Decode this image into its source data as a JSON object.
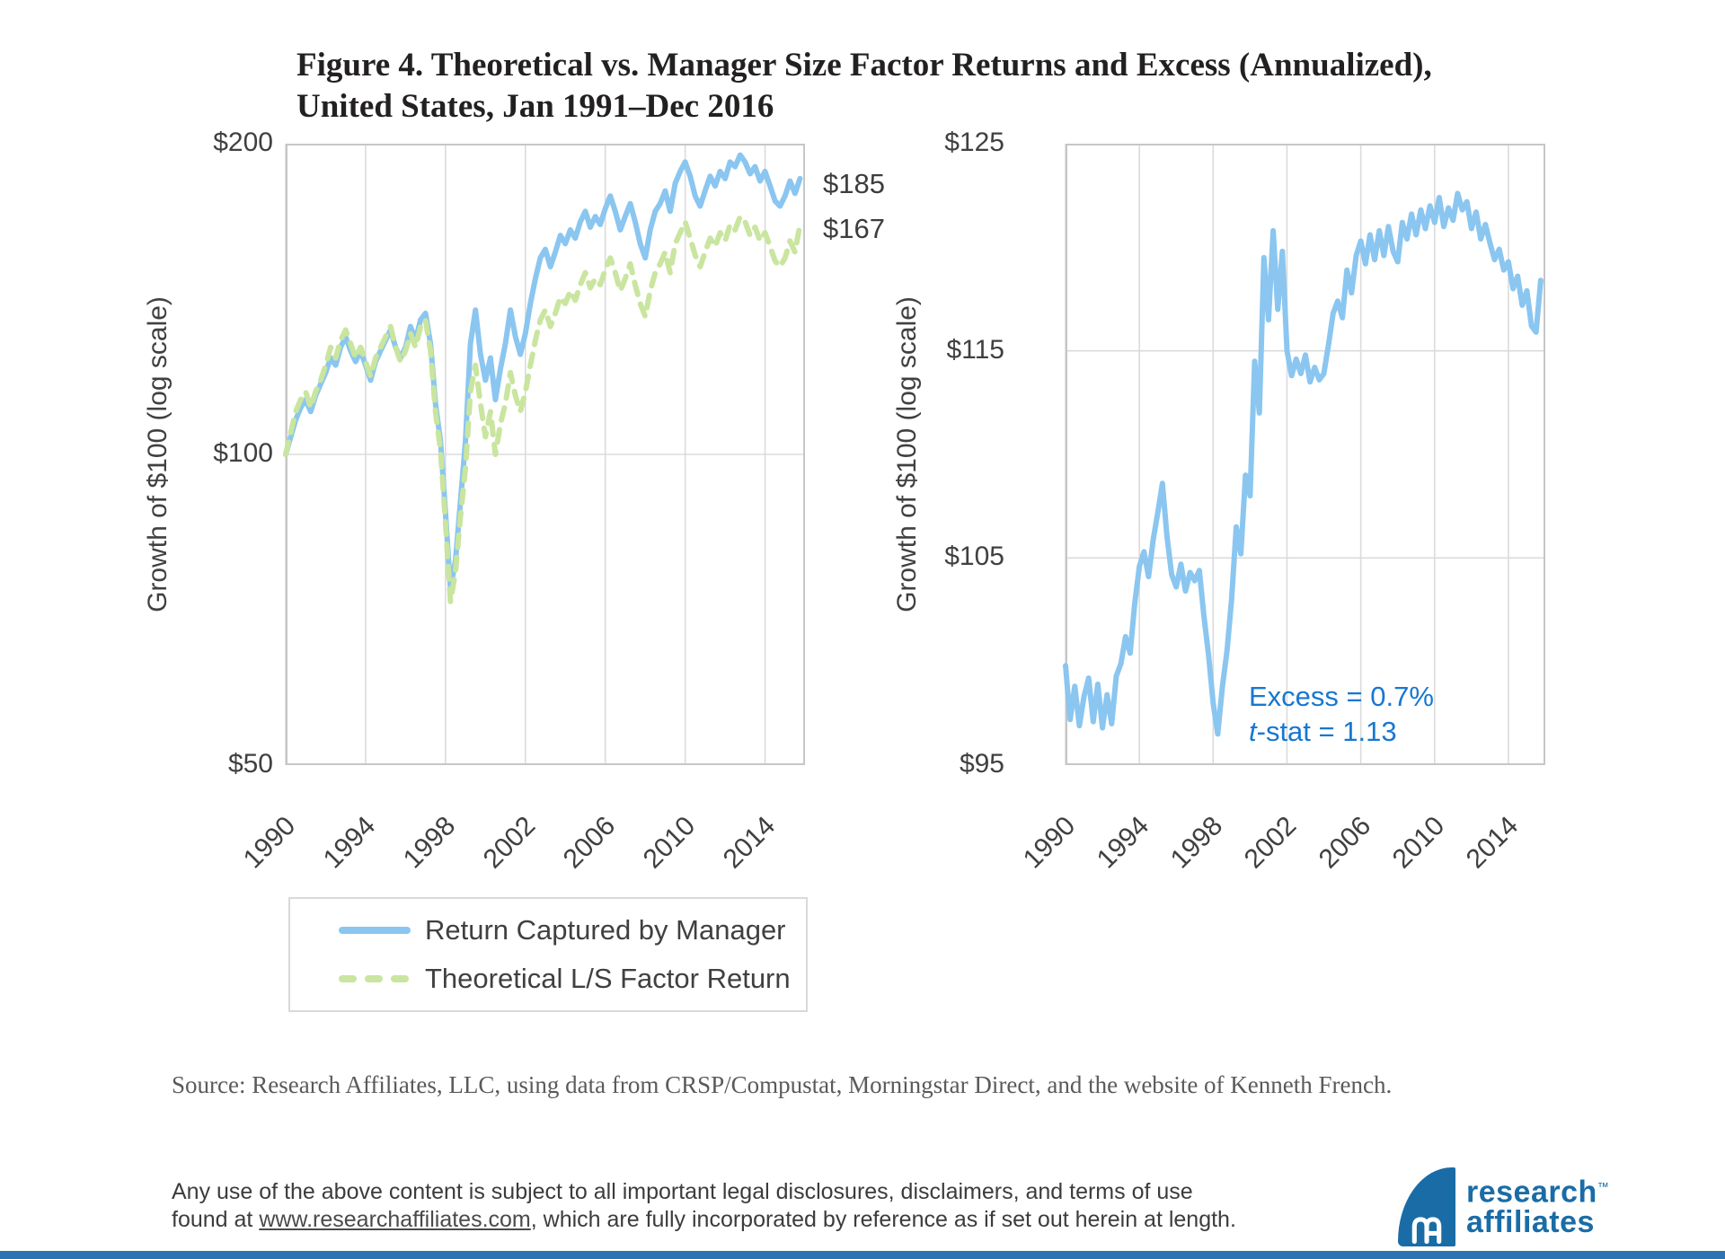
{
  "title": {
    "line1": "Figure 4. Theoretical vs. Manager Size Factor Returns and Excess (Annualized),",
    "line2": "United States, Jan 1991–Dec 2016"
  },
  "colors": {
    "manager_line": "#8AC6F0",
    "theoretical_line": "#C9E59F",
    "excess_line": "#8AC6F0",
    "annotation_blue": "#1777D2",
    "gridline": "#DBDBDB",
    "plot_border": "#C6C6C6",
    "logo_blue": "#1A6CA6",
    "bottom_bar_blue": "#2E74B5"
  },
  "chart_data": [
    {
      "type": "line",
      "name": "growth-left",
      "ylabel": "Growth of $100 (log scale)",
      "yscale": "log",
      "ylim": [
        50,
        200
      ],
      "y_gridlines": [
        100
      ],
      "y_ticks": [
        {
          "label": "$200",
          "v": 200
        },
        {
          "label": "$100",
          "v": 100
        },
        {
          "label": "$50",
          "v": 50
        }
      ],
      "x_tick_labels": [
        "1990",
        "1994",
        "1998",
        "2002",
        "2006",
        "2010",
        "2014"
      ],
      "x_start": 1991,
      "x_step": 0.25,
      "x_max": 2017,
      "grid": true,
      "legend_position": "bottom",
      "end_labels": [
        {
          "text": "$185",
          "series": "Return Captured by Manager"
        },
        {
          "text": "$167",
          "series": "Theoretical L/S Factor Return"
        }
      ],
      "series": [
        {
          "name": "Return Captured by Manager",
          "color": "#8AC6F0",
          "dash": null,
          "values": [
            100,
            104,
            108,
            111,
            113,
            110,
            114,
            117,
            120,
            124,
            122,
            127,
            130,
            126,
            123,
            126,
            122,
            118,
            123,
            126,
            129,
            132,
            127,
            124,
            127,
            133,
            129,
            135,
            137,
            128,
            112,
            103,
            88,
            74,
            79,
            90,
            103,
            128,
            138,
            125,
            118,
            124,
            113,
            121,
            128,
            138,
            130,
            125,
            131,
            140,
            148,
            155,
            158,
            152,
            157,
            163,
            160,
            165,
            162,
            168,
            172,
            166,
            170,
            167,
            173,
            178,
            172,
            165,
            170,
            175,
            168,
            160,
            155,
            165,
            172,
            175,
            180,
            172,
            183,
            188,
            192,
            186,
            178,
            174,
            180,
            186,
            182,
            188,
            185,
            192,
            190,
            195,
            192,
            187,
            190,
            184,
            188,
            182,
            176,
            174,
            178,
            184,
            179,
            185
          ]
        },
        {
          "name": "Theoretical L/S Factor Return",
          "color": "#C9E59F",
          "dash": "14 11",
          "values": [
            100,
            105,
            110,
            113,
            115,
            111,
            115,
            118,
            122,
            127,
            124,
            129,
            132,
            128,
            124,
            127,
            123,
            119,
            124,
            127,
            130,
            133,
            127,
            123,
            126,
            131,
            127,
            133,
            135,
            126,
            110,
            101,
            86,
            72,
            77,
            87,
            97,
            115,
            122,
            112,
            104,
            110,
            100,
            107,
            112,
            120,
            114,
            110,
            115,
            122,
            129,
            135,
            138,
            133,
            137,
            142,
            140,
            144,
            141,
            146,
            150,
            145,
            148,
            146,
            151,
            155,
            150,
            144,
            148,
            153,
            146,
            140,
            136,
            144,
            150,
            153,
            157,
            150,
            160,
            164,
            168,
            162,
            156,
            152,
            157,
            162,
            159,
            164,
            161,
            167,
            165,
            170,
            168,
            163,
            166,
            161,
            164,
            159,
            154,
            152,
            155,
            161,
            157,
            167
          ]
        }
      ]
    },
    {
      "type": "line",
      "name": "excess-right",
      "ylabel": "Growth of $100 (log scale)",
      "yscale": "linear",
      "ylim": [
        95,
        125
      ],
      "y_gridlines": [
        105,
        115
      ],
      "y_ticks": [
        {
          "label": "$125",
          "v": 125
        },
        {
          "label": "$115",
          "v": 115
        },
        {
          "label": "$105",
          "v": 105
        },
        {
          "label": "$95",
          "v": 95
        }
      ],
      "x_tick_labels": [
        "1990",
        "1994",
        "1998",
        "2002",
        "2006",
        "2010",
        "2014"
      ],
      "x_start": 1991,
      "x_step": 0.25,
      "x_max": 2017,
      "grid": true,
      "annotation": {
        "line1": "Excess = 0.7%",
        "line2_italic": "t",
        "line2_rest": "-stat = 1.13"
      },
      "series": [
        {
          "name": "Excess",
          "color": "#8AC6F0",
          "dash": null,
          "values": [
            99.8,
            97.2,
            98.8,
            96.9,
            98.3,
            99.2,
            97.1,
            98.9,
            96.8,
            98.4,
            97.0,
            99.3,
            99.9,
            101.2,
            100.4,
            102.8,
            104.6,
            105.3,
            104.1,
            105.9,
            107.2,
            108.6,
            106.0,
            104.2,
            103.6,
            104.7,
            103.4,
            104.3,
            103.9,
            104.4,
            102.2,
            100.3,
            98.0,
            96.5,
            98.8,
            100.5,
            103.0,
            106.5,
            105.2,
            109.0,
            108.0,
            114.5,
            112.0,
            119.5,
            116.5,
            120.8,
            117.0,
            119.8,
            115.0,
            113.8,
            114.6,
            113.9,
            114.8,
            113.5,
            114.2,
            113.6,
            113.9,
            115.3,
            116.8,
            117.4,
            116.6,
            118.9,
            117.8,
            119.6,
            120.3,
            119.2,
            120.6,
            119.4,
            120.8,
            119.6,
            121.0,
            119.8,
            119.3,
            121.2,
            120.4,
            121.6,
            120.6,
            121.8,
            120.9,
            122.0,
            121.2,
            122.4,
            121.0,
            121.9,
            121.3,
            122.6,
            121.8,
            122.2,
            120.9,
            121.7,
            120.4,
            121.1,
            120.2,
            119.4,
            119.9,
            118.9,
            119.3,
            118.0,
            118.6,
            117.2,
            117.9,
            116.2,
            115.9,
            118.4
          ]
        }
      ]
    }
  ],
  "legend": {
    "items": [
      {
        "label": "Return Captured by Manager",
        "style": "solid",
        "color": "#8AC6F0"
      },
      {
        "label": "Theoretical L/S Factor Return",
        "style": "dashed",
        "color": "#C9E59F"
      }
    ]
  },
  "source": {
    "text": "Source: Research Affiliates, LLC, using data from CRSP/Compustat, Morningstar Direct, and the website of Kenneth French."
  },
  "footer": {
    "line1": "Any use of the above content is subject to all important legal disclosures, disclaimers, and terms of use found at",
    "link": "www.researchaffiliates.com",
    "line2_rest": ", which are fully incorporated by reference as if set out herein at length."
  },
  "logo": {
    "line1": "research",
    "tm": "™",
    "line2": "affiliates"
  }
}
